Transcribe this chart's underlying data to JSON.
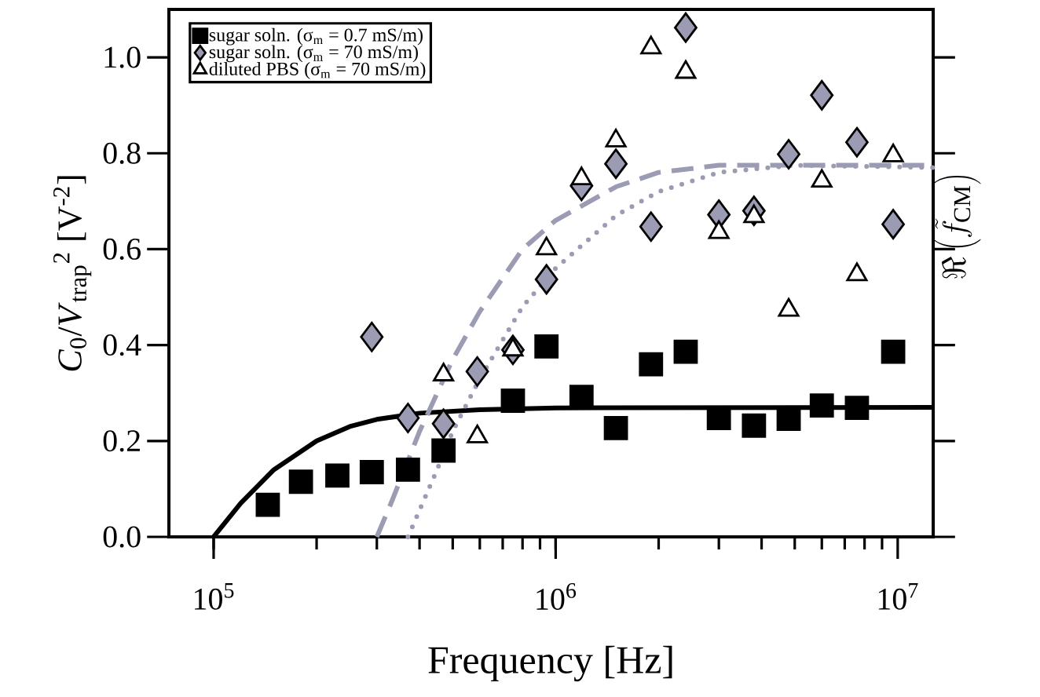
{
  "chart_data": {
    "type": "scatter",
    "xlabel": "Frequency [Hz]",
    "ylabel": "*C*$_{0}$/*V*$_{trap}$$^{2}$ [V$^{-2}$]",
    "y2label": "\\Re\\left(\\tilde{f}_{\\mathrm{CM}}\\right)",
    "log": "x",
    "legend": "top left",
    "xlim": [
      74000,
      12700000
    ],
    "xticks": [
      {
        "value": 100000,
        "label": "10$^{5}$"
      },
      {
        "value": 1000000,
        "label": "10$^{6}$"
      },
      {
        "value": 10000000,
        "label": "10$^{7}$"
      }
    ],
    "ylim": [
      0,
      1.1
    ],
    "yticks": [
      {
        "value": 0,
        "label": "0.0"
      },
      {
        "value": 0.2,
        "label": "0.2"
      },
      {
        "value": 0.4,
        "label": "0.4"
      },
      {
        "value": 0.6,
        "label": "0.6"
      },
      {
        "value": 0.8,
        "label": "0.8"
      },
      {
        "value": 1.0,
        "label": "1.0"
      }
    ],
    "series": [
      {
        "name": "sugar soln. (σ$_{m}$ = 0.7 mS/m)",
        "color": "#000000",
        "marker": "square",
        "x": [
          144000,
          180000,
          230000,
          290000,
          370000,
          470000,
          750000,
          940000,
          1190000,
          1500000,
          1900000,
          2400000,
          3000000,
          3800000,
          4800000,
          6000000,
          7600000,
          9700000
        ],
        "values": [
          0.067,
          0.115,
          0.128,
          0.135,
          0.14,
          0.18,
          0.284,
          0.397,
          0.292,
          0.227,
          0.36,
          0.386,
          0.248,
          0.232,
          0.246,
          0.274,
          0.269,
          0.386
        ]
      },
      {
        "name": "sugar soln. (σ$_{m}$ = 70 mS/m)",
        "color": "#9b9bb4",
        "marker": "diamond",
        "x": [
          290000,
          370000,
          470000,
          590000,
          750000,
          940000,
          1190000,
          1500000,
          1900000,
          2400000,
          3000000,
          3800000,
          4800000,
          6000000,
          7600000,
          9700000
        ],
        "values": [
          0.417,
          0.248,
          0.236,
          0.345,
          0.39,
          0.537,
          0.732,
          0.778,
          0.647,
          1.062,
          0.672,
          0.68,
          0.798,
          0.921,
          0.823,
          0.652
        ]
      },
      {
        "name": "diluted PBS (σ$_{m}$ = 70 mS/m)",
        "color": "#ffffff",
        "marker": "triangle",
        "x": [
          470000,
          590000,
          750000,
          940000,
          1190000,
          1500000,
          1900000,
          2400000,
          3000000,
          3800000,
          4800000,
          6000000,
          7600000,
          9700000
        ],
        "values": [
          0.338,
          0.209,
          0.39,
          0.601,
          0.747,
          0.826,
          1.02,
          0.969,
          0.635,
          0.668,
          0.473,
          0.742,
          0.547,
          0.795
        ]
      },
      {
        "type": "line",
        "color": "#000000",
        "line_style": "solid",
        "x": [
          100000,
          120000,
          150000,
          200000,
          250000,
          300000,
          400000,
          600000,
          1000000,
          12700000
        ],
        "values": [
          0,
          0.07,
          0.14,
          0.2,
          0.23,
          0.245,
          0.258,
          0.265,
          0.269,
          0.27
        ]
      },
      {
        "type": "line",
        "color": "#9b9bb4",
        "line_style": "dashed",
        "x": [
          300000,
          330000,
          400000,
          500000,
          600000,
          800000,
          1000000,
          1500000,
          2000000,
          3000000,
          12700000
        ],
        "values": [
          0,
          0.07,
          0.22,
          0.37,
          0.47,
          0.6,
          0.66,
          0.73,
          0.76,
          0.775,
          0.775
        ]
      },
      {
        "type": "line",
        "color": "#9b9bb4",
        "line_style": "dotted",
        "x": [
          370000,
          450000,
          500000,
          600000,
          800000,
          1000000,
          1500000,
          2000000,
          3000000,
          5000000,
          12700000
        ],
        "values": [
          0,
          0.14,
          0.22,
          0.33,
          0.48,
          0.56,
          0.67,
          0.72,
          0.76,
          0.775,
          0.77
        ]
      }
    ]
  }
}
